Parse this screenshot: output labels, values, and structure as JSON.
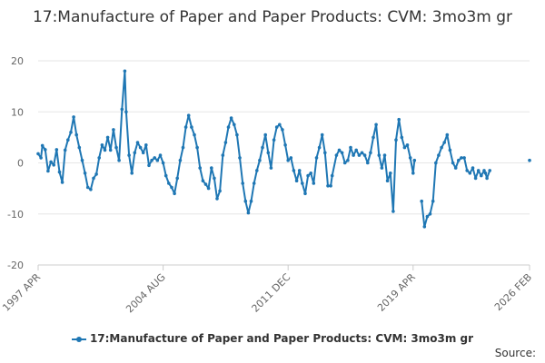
{
  "chart_data": {
    "type": "line",
    "title": "17:Manufacture of Paper and Paper Products: CVM: 3mo3m gr",
    "xlabel": "",
    "ylabel": "",
    "ylim": [
      -20,
      20
    ],
    "yticks": [
      20,
      10,
      0,
      -10,
      -20
    ],
    "xlim": [
      "1997-04",
      "2026-02"
    ],
    "xticks": [
      {
        "date": "1997-04",
        "label": "1997 APR"
      },
      {
        "date": "2004-08",
        "label": "2004 AUG"
      },
      {
        "date": "2011-12",
        "label": "2011 DEC"
      },
      {
        "date": "2019-04",
        "label": "2019 APR"
      },
      {
        "date": "2026-02",
        "label": "2026 FEB"
      }
    ],
    "grid": true,
    "legend_position": "bottom",
    "series": [
      {
        "name": "17:Manufacture of Paper and Paper Products: CVM: 3mo3m gr",
        "color": "#1f77b4",
        "points": [
          [
            "1997-04",
            1.8
          ],
          [
            "1997-06",
            1.0
          ],
          [
            "1997-07",
            3.4
          ],
          [
            "1997-09",
            2.6
          ],
          [
            "1997-11",
            -1.6
          ],
          [
            "1998-01",
            0.2
          ],
          [
            "1998-03",
            -0.4
          ],
          [
            "1998-05",
            2.6
          ],
          [
            "1998-07",
            -1.8
          ],
          [
            "1998-09",
            -3.8
          ],
          [
            "1998-11",
            2.5
          ],
          [
            "1999-01",
            4.5
          ],
          [
            "1999-03",
            6.0
          ],
          [
            "1999-05",
            9.0
          ],
          [
            "1999-07",
            5.5
          ],
          [
            "1999-09",
            3.0
          ],
          [
            "1999-11",
            0.5
          ],
          [
            "2000-01",
            -2.0
          ],
          [
            "2000-03",
            -4.8
          ],
          [
            "2000-05",
            -5.2
          ],
          [
            "2000-07",
            -3.0
          ],
          [
            "2000-09",
            -2.2
          ],
          [
            "2000-11",
            1.0
          ],
          [
            "2001-01",
            3.5
          ],
          [
            "2001-03",
            2.5
          ],
          [
            "2001-05",
            5.0
          ],
          [
            "2001-07",
            2.5
          ],
          [
            "2001-09",
            6.5
          ],
          [
            "2001-11",
            3.0
          ],
          [
            "2002-01",
            0.5
          ],
          [
            "2002-03",
            10.5
          ],
          [
            "2002-05",
            18.0
          ],
          [
            "2002-06",
            10.0
          ],
          [
            "2002-08",
            1.5
          ],
          [
            "2002-10",
            -2.0
          ],
          [
            "2002-12",
            2.0
          ],
          [
            "2003-02",
            4.0
          ],
          [
            "2003-04",
            3.0
          ],
          [
            "2003-06",
            2.0
          ],
          [
            "2003-08",
            3.5
          ],
          [
            "2003-10",
            -0.5
          ],
          [
            "2003-12",
            0.5
          ],
          [
            "2004-02",
            1.0
          ],
          [
            "2004-04",
            0.5
          ],
          [
            "2004-06",
            1.5
          ],
          [
            "2004-08",
            0.0
          ],
          [
            "2004-10",
            -2.5
          ],
          [
            "2004-12",
            -4.0
          ],
          [
            "2005-02",
            -4.8
          ],
          [
            "2005-04",
            -6.0
          ],
          [
            "2005-06",
            -3.0
          ],
          [
            "2005-08",
            0.5
          ],
          [
            "2005-10",
            3.0
          ],
          [
            "2005-12",
            7.0
          ],
          [
            "2006-02",
            9.3
          ],
          [
            "2006-04",
            7.0
          ],
          [
            "2006-06",
            5.5
          ],
          [
            "2006-08",
            3.0
          ],
          [
            "2006-10",
            -1.0
          ],
          [
            "2006-12",
            -3.5
          ],
          [
            "2007-02",
            -4.2
          ],
          [
            "2007-04",
            -5.0
          ],
          [
            "2007-06",
            -1.0
          ],
          [
            "2007-08",
            -3.0
          ],
          [
            "2007-10",
            -7.0
          ],
          [
            "2007-12",
            -5.5
          ],
          [
            "2008-02",
            1.5
          ],
          [
            "2008-04",
            4.0
          ],
          [
            "2008-06",
            7.0
          ],
          [
            "2008-08",
            8.8
          ],
          [
            "2008-10",
            7.5
          ],
          [
            "2008-12",
            5.5
          ],
          [
            "2009-02",
            1.0
          ],
          [
            "2009-04",
            -4.0
          ],
          [
            "2009-06",
            -7.5
          ],
          [
            "2009-08",
            -9.8
          ],
          [
            "2009-10",
            -7.5
          ],
          [
            "2009-12",
            -4.0
          ],
          [
            "2010-02",
            -1.5
          ],
          [
            "2010-04",
            0.5
          ],
          [
            "2010-06",
            3.0
          ],
          [
            "2010-08",
            5.5
          ],
          [
            "2010-10",
            2.0
          ],
          [
            "2010-12",
            -1.0
          ],
          [
            "2011-02",
            4.5
          ],
          [
            "2011-04",
            7.0
          ],
          [
            "2011-06",
            7.5
          ],
          [
            "2011-08",
            6.5
          ],
          [
            "2011-10",
            3.5
          ],
          [
            "2011-12",
            0.5
          ],
          [
            "2012-02",
            1.0
          ],
          [
            "2012-04",
            -1.5
          ],
          [
            "2012-06",
            -3.5
          ],
          [
            "2012-08",
            -1.5
          ],
          [
            "2012-10",
            -4.0
          ],
          [
            "2012-12",
            -6.0
          ],
          [
            "2013-02",
            -2.5
          ],
          [
            "2013-04",
            -2.0
          ],
          [
            "2013-06",
            -4.0
          ],
          [
            "2013-08",
            1.0
          ],
          [
            "2013-10",
            3.0
          ],
          [
            "2013-12",
            5.5
          ],
          [
            "2014-02",
            2.0
          ],
          [
            "2014-04",
            -4.5
          ],
          [
            "2014-06",
            -4.5
          ],
          [
            "2014-07",
            -2.5
          ],
          [
            "2014-10",
            1.5
          ],
          [
            "2014-12",
            2.5
          ],
          [
            "2015-02",
            2.0
          ],
          [
            "2015-04",
            0.0
          ],
          [
            "2015-06",
            0.5
          ],
          [
            "2015-08",
            3.0
          ],
          [
            "2015-10",
            1.5
          ],
          [
            "2015-12",
            2.5
          ],
          [
            "2016-02",
            1.5
          ],
          [
            "2016-04",
            2.0
          ],
          [
            "2016-06",
            1.5
          ],
          [
            "2016-08",
            0.0
          ],
          [
            "2016-10",
            2.0
          ],
          [
            "2016-12",
            5.0
          ],
          [
            "2017-02",
            7.5
          ],
          [
            "2017-04",
            1.5
          ],
          [
            "2017-06",
            -1.0
          ],
          [
            "2017-08",
            1.5
          ],
          [
            "2017-10",
            -3.5
          ],
          [
            "2017-12",
            -2.0
          ],
          [
            "2018-02",
            -9.5
          ],
          [
            "2018-04",
            4.5
          ],
          [
            "2018-06",
            8.5
          ],
          [
            "2018-08",
            5.0
          ],
          [
            "2018-10",
            3.0
          ],
          [
            "2018-12",
            3.5
          ],
          [
            "2019-02",
            1.0
          ],
          [
            "2019-04",
            -2.0
          ],
          [
            "2019-05",
            0.5
          ]
        ]
      },
      {
        "name": "",
        "color": "#1f77b4",
        "points": [
          [
            "2019-10",
            -7.5
          ],
          [
            "2019-12",
            -12.5
          ],
          [
            "2020-02",
            -10.5
          ],
          [
            "2020-04",
            -10.0
          ],
          [
            "2020-06",
            -7.5
          ],
          [
            "2020-08",
            0.0
          ],
          [
            "2020-10",
            1.5
          ],
          [
            "2020-12",
            3.0
          ],
          [
            "2021-02",
            4.0
          ],
          [
            "2021-04",
            5.5
          ],
          [
            "2021-06",
            2.5
          ],
          [
            "2021-08",
            0.0
          ],
          [
            "2021-10",
            -1.0
          ],
          [
            "2021-12",
            0.5
          ],
          [
            "2022-02",
            1.0
          ],
          [
            "2022-04",
            1.0
          ],
          [
            "2022-06",
            -1.5
          ],
          [
            "2022-08",
            -2.0
          ],
          [
            "2022-10",
            -1.0
          ],
          [
            "2022-12",
            -3.0
          ],
          [
            "2023-02",
            -1.5
          ],
          [
            "2023-04",
            -2.5
          ],
          [
            "2023-06",
            -1.5
          ],
          [
            "2023-07",
            -2.0
          ],
          [
            "2023-08",
            -3.0
          ],
          [
            "2023-10",
            -1.5
          ]
        ]
      },
      {
        "name": "",
        "color": "#1f77b4",
        "points": [
          [
            "2026-02",
            0.5
          ]
        ]
      }
    ]
  },
  "legend": {
    "label": "17:Manufacture of Paper and Paper Products: CVM: 3mo3m gr"
  },
  "footer": {
    "source_label": "Source:"
  }
}
